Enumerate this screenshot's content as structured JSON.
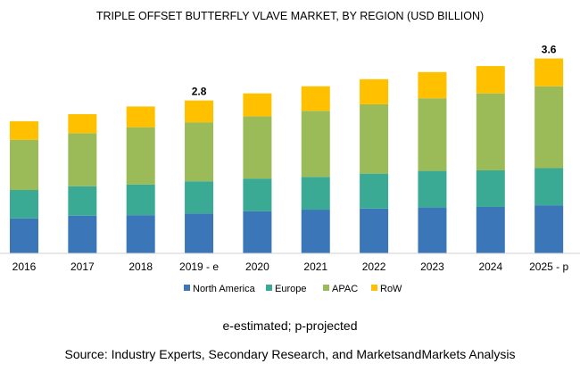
{
  "chart_data": {
    "type": "bar",
    "stacked": true,
    "title": "TRIPLE OFFSET BUTTERFLY VLAVE MARKET, BY REGION (USD BILLION)",
    "categories": [
      "2016",
      "2017",
      "2018",
      "2019 - e",
      "2020",
      "2021",
      "2022",
      "2023",
      "2024",
      "2025 - p"
    ],
    "series": [
      {
        "name": "North America",
        "color": "#3b76b9",
        "values": [
          0.64,
          0.69,
          0.7,
          0.73,
          0.77,
          0.8,
          0.82,
          0.84,
          0.85,
          0.88
        ]
      },
      {
        "name": "Europe",
        "color": "#3aaa94",
        "values": [
          0.52,
          0.54,
          0.56,
          0.59,
          0.6,
          0.6,
          0.64,
          0.67,
          0.67,
          0.68
        ]
      },
      {
        "name": "APAC",
        "color": "#9bbb59",
        "values": [
          0.92,
          0.97,
          1.05,
          1.08,
          1.14,
          1.21,
          1.27,
          1.33,
          1.41,
          1.5
        ]
      },
      {
        "name": "RoW",
        "color": "#ffc000",
        "values": [
          0.34,
          0.35,
          0.38,
          0.4,
          0.42,
          0.45,
          0.46,
          0.48,
          0.5,
          0.51
        ]
      }
    ],
    "data_labels": [
      {
        "category": "2019 - e",
        "text": "2.8"
      },
      {
        "category": "2025 - p",
        "text": "3.6"
      }
    ],
    "ylim": [
      0,
      4.5
    ],
    "grid": false,
    "legend": "bottom",
    "xlabel": "",
    "ylabel": ""
  },
  "footnote": "e-estimated; p-projected",
  "source": "Source: Industry Experts, Secondary Research, and MarketsandMarkets Analysis"
}
